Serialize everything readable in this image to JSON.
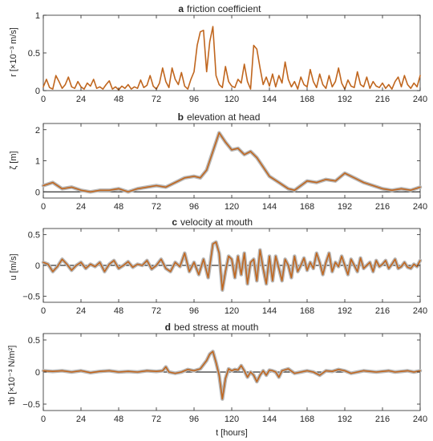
{
  "figure": {
    "xlabel": "t [hours]",
    "colors": {
      "model": "#c0661e",
      "observed": "#b8b8b8",
      "zero_line": "#000000",
      "axes": "#262626"
    }
  },
  "chart_data": [
    {
      "type": "line",
      "panel": "a",
      "title": "friction coefficient",
      "ylabel": "r [×10⁻³ m/s]",
      "xlim": [
        0,
        240
      ],
      "ylim": [
        0,
        1
      ],
      "xticks": [
        0,
        24,
        48,
        72,
        96,
        120,
        144,
        168,
        192,
        216,
        240
      ],
      "yticks": [
        0,
        0.5,
        1
      ],
      "zero_line": false,
      "series": [
        {
          "role": "model",
          "x": [
            0,
            2,
            4,
            6,
            8,
            10,
            12,
            14,
            16,
            18,
            20,
            22,
            24,
            26,
            28,
            30,
            32,
            34,
            36,
            38,
            40,
            42,
            44,
            46,
            48,
            50,
            52,
            54,
            56,
            58,
            60,
            62,
            64,
            66,
            68,
            70,
            72,
            74,
            76,
            78,
            80,
            82,
            84,
            86,
            88,
            90,
            92,
            94,
            96,
            98,
            100,
            102,
            104,
            106,
            108,
            110,
            112,
            114,
            116,
            118,
            120,
            122,
            124,
            126,
            128,
            130,
            132,
            134,
            136,
            138,
            140,
            142,
            144,
            146,
            148,
            150,
            152,
            154,
            156,
            158,
            160,
            162,
            164,
            166,
            168,
            170,
            172,
            174,
            176,
            178,
            180,
            182,
            184,
            186,
            188,
            190,
            192,
            194,
            196,
            198,
            200,
            202,
            204,
            206,
            208,
            210,
            212,
            214,
            216,
            218,
            220,
            222,
            224,
            226,
            228,
            230,
            232,
            234,
            236,
            238,
            240
          ],
          "y": [
            0.05,
            0.15,
            0.04,
            0.02,
            0.2,
            0.12,
            0.03,
            0.08,
            0.18,
            0.05,
            0.03,
            0.12,
            0.05,
            0.02,
            0.1,
            0.06,
            0.15,
            0.03,
            0.05,
            0.02,
            0.08,
            0.13,
            0.02,
            0.05,
            0.01,
            0.06,
            0.03,
            0.08,
            0.02,
            0.05,
            0.03,
            0.14,
            0.04,
            0.07,
            0.2,
            0.06,
            0.02,
            0.1,
            0.3,
            0.12,
            0.04,
            0.3,
            0.15,
            0.08,
            0.24,
            0.06,
            0.02,
            0.15,
            0.25,
            0.6,
            0.78,
            0.8,
            0.25,
            0.65,
            0.85,
            0.2,
            0.08,
            0.04,
            0.32,
            0.12,
            0.06,
            0.04,
            0.15,
            0.1,
            0.35,
            0.12,
            0.02,
            0.6,
            0.55,
            0.3,
            0.08,
            0.18,
            0.06,
            0.22,
            0.05,
            0.2,
            0.1,
            0.38,
            0.15,
            0.05,
            0.12,
            0.02,
            0.18,
            0.08,
            0.05,
            0.28,
            0.12,
            0.04,
            0.22,
            0.08,
            0.03,
            0.2,
            0.05,
            0.12,
            0.3,
            0.1,
            0.02,
            0.14,
            0.06,
            0.04,
            0.25,
            0.08,
            0.05,
            0.18,
            0.03,
            0.12,
            0.06,
            0.04,
            0.1,
            0.03,
            0.08,
            0.02,
            0.12,
            0.18,
            0.05,
            0.2,
            0.08,
            0.03,
            0.1,
            0.05,
            0.2
          ]
        }
      ]
    },
    {
      "type": "line",
      "panel": "b",
      "title": "elevation at head",
      "ylabel": "ζ [m]",
      "xlim": [
        0,
        240
      ],
      "ylim": [
        -0.2,
        2.2
      ],
      "xticks": [
        0,
        24,
        48,
        72,
        96,
        120,
        144,
        168,
        192,
        216,
        240
      ],
      "yticks": [
        0,
        1,
        2
      ],
      "zero_line": true,
      "series": [
        {
          "role": "model",
          "x": [
            0,
            6,
            12,
            18,
            24,
            30,
            36,
            42,
            48,
            54,
            60,
            66,
            72,
            78,
            84,
            90,
            96,
            100,
            104,
            108,
            112,
            116,
            120,
            124,
            128,
            132,
            136,
            140,
            144,
            150,
            156,
            160,
            164,
            168,
            174,
            180,
            186,
            192,
            198,
            204,
            210,
            216,
            222,
            228,
            234,
            240
          ],
          "y": [
            0.2,
            0.3,
            0.1,
            0.15,
            0.05,
            0,
            0.05,
            0.05,
            0.1,
            0.0,
            0.1,
            0.15,
            0.2,
            0.15,
            0.3,
            0.45,
            0.5,
            0.45,
            0.7,
            1.3,
            1.9,
            1.6,
            1.35,
            1.4,
            1.2,
            1.3,
            1.1,
            0.8,
            0.5,
            0.3,
            0.1,
            0.05,
            0.2,
            0.35,
            0.3,
            0.4,
            0.35,
            0.6,
            0.45,
            0.3,
            0.2,
            0.1,
            0.05,
            0.1,
            0.05,
            0.15
          ]
        }
      ]
    },
    {
      "type": "line",
      "panel": "c",
      "title": "velocity at mouth",
      "ylabel": "u [m/s]",
      "xlim": [
        0,
        240
      ],
      "ylim": [
        -0.6,
        0.6
      ],
      "xticks": [
        0,
        24,
        48,
        72,
        96,
        120,
        144,
        168,
        192,
        216,
        240
      ],
      "yticks": [
        -0.5,
        0,
        0.5
      ],
      "zero_line": true,
      "series": [
        {
          "role": "model",
          "x": [
            0,
            3,
            6,
            9,
            12,
            15,
            18,
            21,
            24,
            27,
            30,
            33,
            36,
            39,
            42,
            45,
            48,
            51,
            54,
            57,
            60,
            63,
            66,
            69,
            72,
            75,
            78,
            81,
            84,
            87,
            90,
            93,
            96,
            99,
            102,
            105,
            108,
            110,
            112,
            114,
            116,
            118,
            120,
            122,
            124,
            126,
            128,
            130,
            132,
            134,
            136,
            138,
            140,
            142,
            144,
            146,
            148,
            150,
            152,
            154,
            156,
            158,
            160,
            162,
            164,
            166,
            168,
            170,
            172,
            174,
            176,
            178,
            180,
            182,
            184,
            186,
            188,
            190,
            192,
            194,
            196,
            198,
            200,
            202,
            204,
            206,
            208,
            210,
            212,
            214,
            216,
            218,
            220,
            222,
            224,
            226,
            228,
            230,
            232,
            234,
            236,
            238,
            240
          ],
          "y": [
            0.05,
            0.02,
            -0.1,
            -0.02,
            0.1,
            0.02,
            -0.08,
            0,
            0.05,
            -0.05,
            0.02,
            -0.02,
            0.05,
            -0.1,
            0.02,
            0.08,
            -0.05,
            0,
            0.06,
            -0.03,
            0.02,
            0.0,
            0.08,
            -0.06,
            0.0,
            0.1,
            -0.05,
            -0.1,
            0.05,
            -0.02,
            0.2,
            -0.1,
            0.05,
            -0.15,
            0.1,
            -0.2,
            0.35,
            0.38,
            0.2,
            -0.4,
            -0.1,
            0.15,
            0.1,
            -0.2,
            0.15,
            -0.15,
            0.2,
            -0.3,
            0.05,
            0.1,
            -0.25,
            0.25,
            -0.05,
            -0.3,
            0.15,
            -0.25,
            0.15,
            -0.05,
            -0.25,
            0.1,
            0.0,
            -0.2,
            0.15,
            -0.1,
            0.0,
            0.12,
            -0.08,
            0.05,
            -0.05,
            0.2,
            0.05,
            -0.15,
            0.05,
            0.2,
            -0.1,
            0.05,
            -0.02,
            0.15,
            0.0,
            -0.15,
            0.1,
            0.0,
            -0.1,
            0.12,
            -0.05,
            0.0,
            0.05,
            -0.1,
            0.08,
            -0.02,
            0.02,
            0.08,
            -0.05,
            0.02,
            0.1,
            -0.05,
            -0.02,
            0.05,
            -0.03,
            -0.05,
            0.02,
            -0.02,
            0.08
          ]
        }
      ]
    },
    {
      "type": "line",
      "panel": "d",
      "title": "bed stress at mouth",
      "ylabel": "τb [×10⁻³ N/m²]",
      "xlim": [
        0,
        240
      ],
      "ylim": [
        -0.6,
        0.6
      ],
      "xticks": [
        0,
        24,
        48,
        72,
        96,
        120,
        144,
        168,
        192,
        216,
        240
      ],
      "yticks": [
        -0.5,
        0,
        0.5
      ],
      "zero_line": true,
      "series": [
        {
          "role": "model",
          "x": [
            0,
            6,
            12,
            18,
            24,
            30,
            36,
            42,
            48,
            54,
            60,
            66,
            72,
            76,
            78,
            80,
            84,
            88,
            92,
            96,
            100,
            104,
            106,
            108,
            110,
            112,
            114,
            116,
            118,
            120,
            122,
            124,
            126,
            128,
            130,
            132,
            134,
            136,
            138,
            140,
            142,
            144,
            146,
            148,
            150,
            152,
            156,
            160,
            164,
            168,
            172,
            176,
            180,
            184,
            188,
            192,
            196,
            200,
            204,
            208,
            212,
            216,
            220,
            224,
            228,
            232,
            236,
            240
          ],
          "y": [
            0.02,
            0.01,
            0.02,
            0,
            0.02,
            -0.01,
            0.01,
            0.02,
            0,
            0.01,
            0,
            0.02,
            0.01,
            0.02,
            0.08,
            0.0,
            -0.02,
            0.0,
            0.04,
            0.02,
            0.05,
            0.18,
            0.28,
            0.32,
            0.15,
            -0.05,
            -0.42,
            -0.1,
            0.05,
            0.02,
            0.04,
            0.03,
            0.1,
            0.02,
            -0.08,
            0.0,
            -0.05,
            -0.15,
            -0.05,
            0.02,
            -0.05,
            0.03,
            0.02,
            0.0,
            -0.08,
            0.02,
            0.05,
            -0.02,
            0.0,
            0.02,
            0.0,
            -0.05,
            0.02,
            0.01,
            0.04,
            0.02,
            -0.02,
            0.0,
            0.02,
            0.01,
            0.0,
            0.01,
            0.02,
            0.0,
            0.01,
            0.02,
            0.0,
            0.02
          ]
        }
      ]
    }
  ]
}
